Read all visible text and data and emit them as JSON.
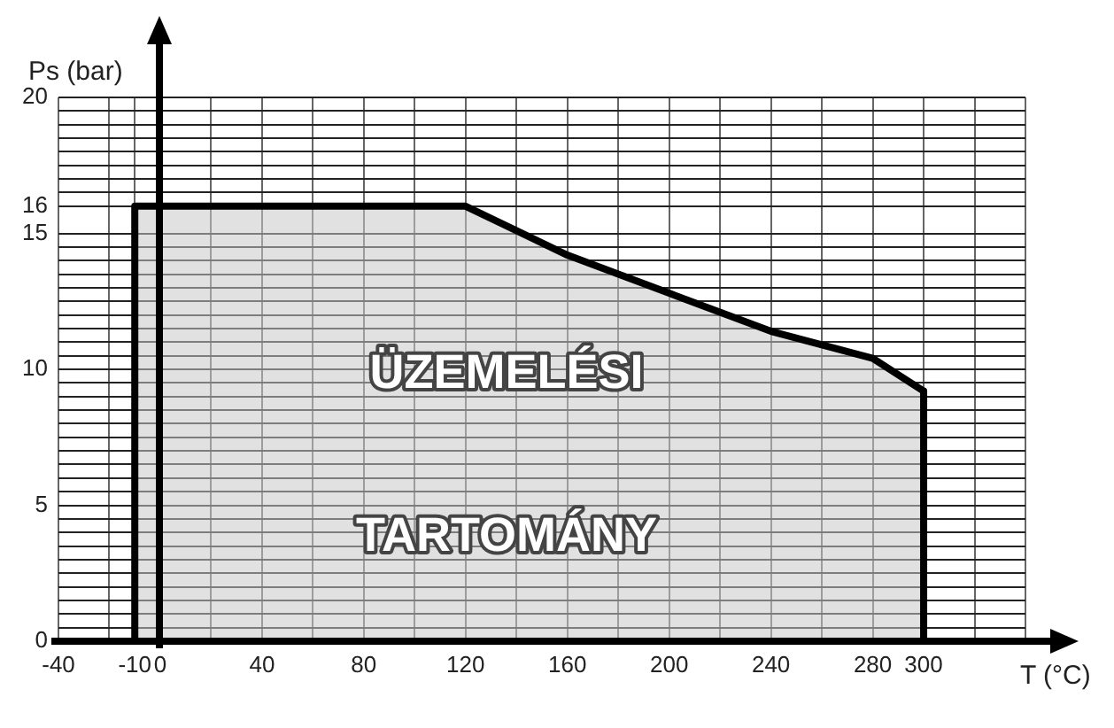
{
  "chart_data": {
    "type": "area",
    "xlabel": "T (°C)",
    "ylabel": "Ps (bar)",
    "annotations": [
      "ÜZEMELÉSI",
      "TARTOMÁNY"
    ],
    "series": [
      {
        "color": "#000000",
        "x": [
          -10,
          -10,
          120,
          160,
          200,
          240,
          280,
          300,
          300
        ],
        "values": [
          0,
          16,
          16,
          14.2,
          12.8,
          11.4,
          10.4,
          9.2,
          0
        ]
      }
    ],
    "xlim": [
      -40,
      340
    ],
    "xticks": [
      -40,
      {
        "value": -20,
        "label": null
      },
      -10,
      0,
      {
        "value": 20,
        "label": null
      },
      40,
      {
        "value": 60,
        "label": null
      },
      80,
      {
        "value": 100,
        "label": null
      },
      120,
      {
        "value": 140,
        "label": null
      },
      160,
      {
        "value": 180,
        "label": null
      },
      200,
      {
        "value": 220,
        "label": null
      },
      240,
      {
        "value": 260,
        "label": null
      },
      280,
      300,
      {
        "value": 320,
        "label": null
      },
      {
        "value": 340,
        "label": null
      }
    ],
    "ylim": [
      0,
      20
    ],
    "yticks": [
      0,
      {
        "value": 0.5,
        "label": null
      },
      {
        "value": 1,
        "label": null
      },
      {
        "value": 1.5,
        "label": null
      },
      {
        "value": 2,
        "label": null
      },
      {
        "value": 2.5,
        "label": null
      },
      {
        "value": 3,
        "label": null
      },
      {
        "value": 3.5,
        "label": null
      },
      {
        "value": 4,
        "label": null
      },
      {
        "value": 4.5,
        "label": null
      },
      5,
      {
        "value": 5.5,
        "label": null
      },
      {
        "value": 6,
        "label": null
      },
      {
        "value": 6.5,
        "label": null
      },
      {
        "value": 7,
        "label": null
      },
      {
        "value": 7.5,
        "label": null
      },
      {
        "value": 8,
        "label": null
      },
      {
        "value": 8.5,
        "label": null
      },
      {
        "value": 9,
        "label": null
      },
      {
        "value": 9.5,
        "label": null
      },
      10,
      {
        "value": 10.5,
        "label": null
      },
      {
        "value": 11,
        "label": null
      },
      {
        "value": 11.5,
        "label": null
      },
      {
        "value": 12,
        "label": null
      },
      {
        "value": 12.5,
        "label": null
      },
      {
        "value": 13,
        "label": null
      },
      {
        "value": 13.5,
        "label": null
      },
      {
        "value": 14,
        "label": null
      },
      {
        "value": 14.5,
        "label": null
      },
      15,
      16,
      {
        "value": 16.5,
        "label": null
      },
      {
        "value": 17,
        "label": null
      },
      {
        "value": 17.5,
        "label": null
      },
      {
        "value": 18,
        "label": null
      },
      {
        "value": 18.5,
        "label": null
      },
      {
        "value": 19,
        "label": null
      },
      {
        "value": 19.5,
        "label": null
      },
      20
    ],
    "grid": true,
    "legend": false
  }
}
